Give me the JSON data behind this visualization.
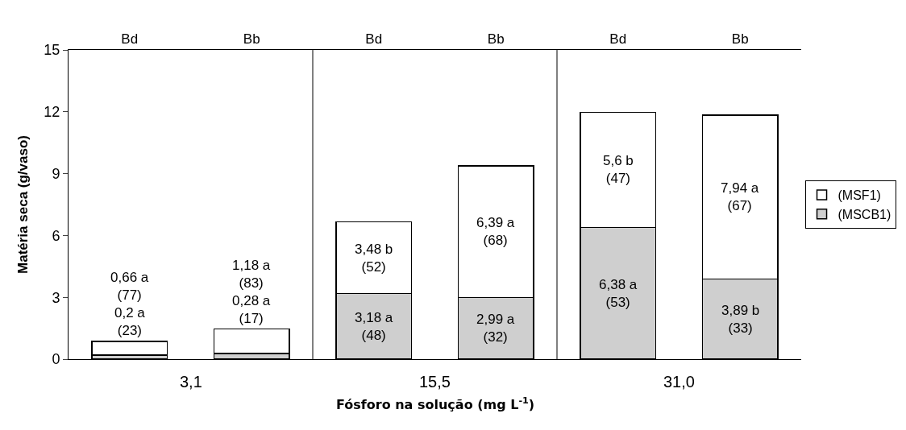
{
  "chart_data": {
    "type": "bar",
    "stacked": true,
    "categories": [
      "Bd",
      "Bb",
      "Bd",
      "Bb",
      "Bd",
      "Bb"
    ],
    "xlabel": "Fósforo na solução (mg L$^{-1}$)",
    "ylabel": "Matéria seca (g/vaso)",
    "ylim": [
      0,
      15
    ],
    "yticks": [
      0,
      3,
      6,
      9,
      12,
      15
    ],
    "legend": "right",
    "series": [
      {
        "name": "(MSCB1)",
        "color": "#cfcfcf",
        "values": [
          0.2,
          0.28,
          3.18,
          2.99,
          6.38,
          3.89
        ],
        "value_labels": [
          "0,2 a\n(23)",
          "0,28 a\n(17)",
          "3,18 a\n(48)",
          "2,99 a\n(32)",
          "6,38 a\n(53)",
          "3,89 b\n(33)"
        ]
      },
      {
        "name": "(MSF1)",
        "color": "#ffffff",
        "values": [
          0.66,
          1.18,
          3.48,
          6.39,
          5.6,
          7.94
        ],
        "value_labels": [
          "0,66 a\n(77)",
          "1,18 a\n(83)",
          "3,48 b\n(52)",
          "6,39 a\n(68)",
          "5,6 b\n(47)",
          "7,94 a\n(67)"
        ]
      }
    ],
    "annotations": [
      "3,1",
      "15,5",
      "31,0"
    ]
  }
}
